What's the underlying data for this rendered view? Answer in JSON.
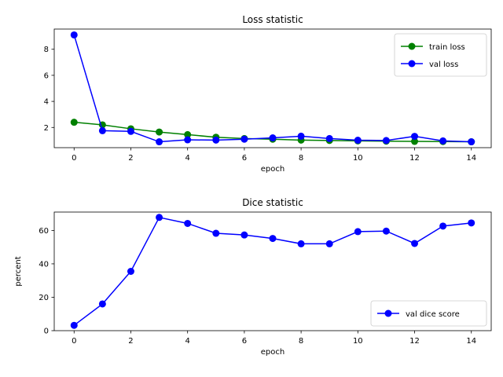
{
  "chart_data": [
    {
      "type": "line",
      "title": "Loss statistic",
      "xlabel": "epoch",
      "ylabel": "",
      "x": [
        0,
        1,
        2,
        3,
        4,
        5,
        6,
        7,
        8,
        9,
        10,
        11,
        12,
        13,
        14
      ],
      "xlim": [
        -0.7,
        14.7
      ],
      "ylim": [
        0.45,
        9.55
      ],
      "xticks": [
        0,
        2,
        4,
        6,
        8,
        10,
        12,
        14
      ],
      "yticks": [
        2,
        4,
        6,
        8
      ],
      "grid": false,
      "legend_position": "top-right",
      "series": [
        {
          "name": "train loss",
          "color": "#008000",
          "marker": "circle",
          "values": [
            2.4,
            2.2,
            1.9,
            1.65,
            1.45,
            1.25,
            1.15,
            1.1,
            1.03,
            1.0,
            0.97,
            0.95,
            0.93,
            0.92,
            0.9
          ]
        },
        {
          "name": "val loss",
          "color": "#0000ff",
          "marker": "circle",
          "values": [
            9.1,
            1.75,
            1.7,
            0.9,
            1.05,
            1.03,
            1.1,
            1.2,
            1.33,
            1.15,
            1.02,
            1.0,
            1.32,
            0.97,
            0.9
          ]
        }
      ]
    },
    {
      "type": "line",
      "title": "Dice statistic",
      "xlabel": "epoch",
      "ylabel": "percent",
      "x": [
        0,
        1,
        2,
        3,
        4,
        5,
        6,
        7,
        8,
        9,
        10,
        11,
        12,
        13,
        14
      ],
      "xlim": [
        -0.7,
        14.7
      ],
      "ylim": [
        0,
        71
      ],
      "xticks": [
        0,
        2,
        4,
        6,
        8,
        10,
        12,
        14
      ],
      "yticks": [
        0,
        20,
        40,
        60
      ],
      "grid": false,
      "legend_position": "bottom-right",
      "series": [
        {
          "name": "val dice score",
          "color": "#0000ff",
          "marker": "circle",
          "values": [
            3.2,
            16.0,
            35.5,
            67.8,
            64.2,
            58.3,
            57.3,
            55.2,
            52.0,
            52.0,
            59.3,
            59.6,
            52.2,
            62.6,
            64.5
          ]
        }
      ]
    }
  ]
}
